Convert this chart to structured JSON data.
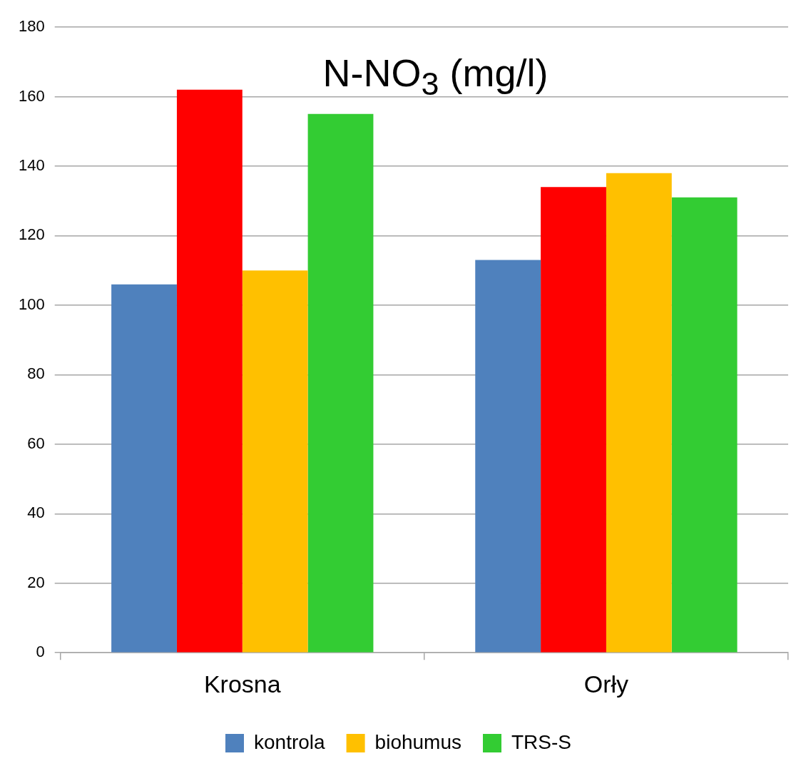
{
  "chart_data": {
    "type": "bar",
    "title": "N-NO$_{3}$ (mg/l)",
    "categories": [
      "Krosna",
      "Orły"
    ],
    "series": [
      {
        "name": "kontrola",
        "color": "#4f81bd",
        "values": [
          106,
          113
        ]
      },
      {
        "color": "#ff0000",
        "values": [
          162,
          134
        ]
      },
      {
        "name": "biohumus",
        "color": "#ffc000",
        "values": [
          110,
          138
        ]
      },
      {
        "name": "TRS-S",
        "color": "#33cc33",
        "values": [
          155,
          131
        ]
      }
    ],
    "ylim": [
      0,
      180
    ],
    "yticks": [
      0,
      20,
      40,
      60,
      80,
      100,
      120,
      140,
      160,
      180
    ],
    "grid": "y",
    "legend": "bottom"
  }
}
